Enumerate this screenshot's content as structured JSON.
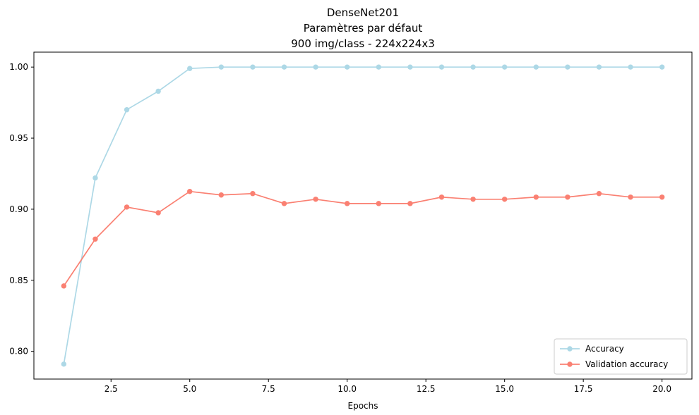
{
  "chart_data": {
    "type": "line",
    "title_lines": [
      "DenseNet201",
      "Paramètres par défaut",
      "900 img/class - 224x224x3"
    ],
    "xlabel": "Epochs",
    "ylabel": "",
    "xlim": [
      0.05,
      20.95
    ],
    "ylim": [
      0.7805,
      1.0105
    ],
    "xticks": [
      2.5,
      5.0,
      7.5,
      10.0,
      12.5,
      15.0,
      17.5,
      20.0
    ],
    "xtick_labels": [
      "2.5",
      "5.0",
      "7.5",
      "10.0",
      "12.5",
      "15.0",
      "17.5",
      "20.0"
    ],
    "yticks": [
      0.8,
      0.85,
      0.9,
      0.95,
      1.0
    ],
    "ytick_labels": [
      "0.80",
      "0.85",
      "0.90",
      "0.95",
      "1.00"
    ],
    "grid": false,
    "legend_position": "lower-right",
    "x": [
      1,
      2,
      3,
      4,
      5,
      6,
      7,
      8,
      9,
      10,
      11,
      12,
      13,
      14,
      15,
      16,
      17,
      18,
      19,
      20
    ],
    "series": [
      {
        "name": "Accuracy",
        "color": "#add8e6",
        "values": [
          0.791,
          0.922,
          0.97,
          0.983,
          0.999,
          1.0,
          1.0,
          1.0,
          1.0,
          1.0,
          1.0,
          1.0,
          1.0,
          1.0,
          1.0,
          1.0,
          1.0,
          1.0,
          1.0,
          1.0
        ]
      },
      {
        "name": "Validation accuracy",
        "color": "#fa8072",
        "values": [
          0.846,
          0.879,
          0.9015,
          0.8975,
          0.9125,
          0.91,
          0.911,
          0.904,
          0.907,
          0.904,
          0.904,
          0.904,
          0.9085,
          0.907,
          0.907,
          0.9085,
          0.9085,
          0.911,
          0.9085,
          0.9085
        ]
      }
    ]
  }
}
